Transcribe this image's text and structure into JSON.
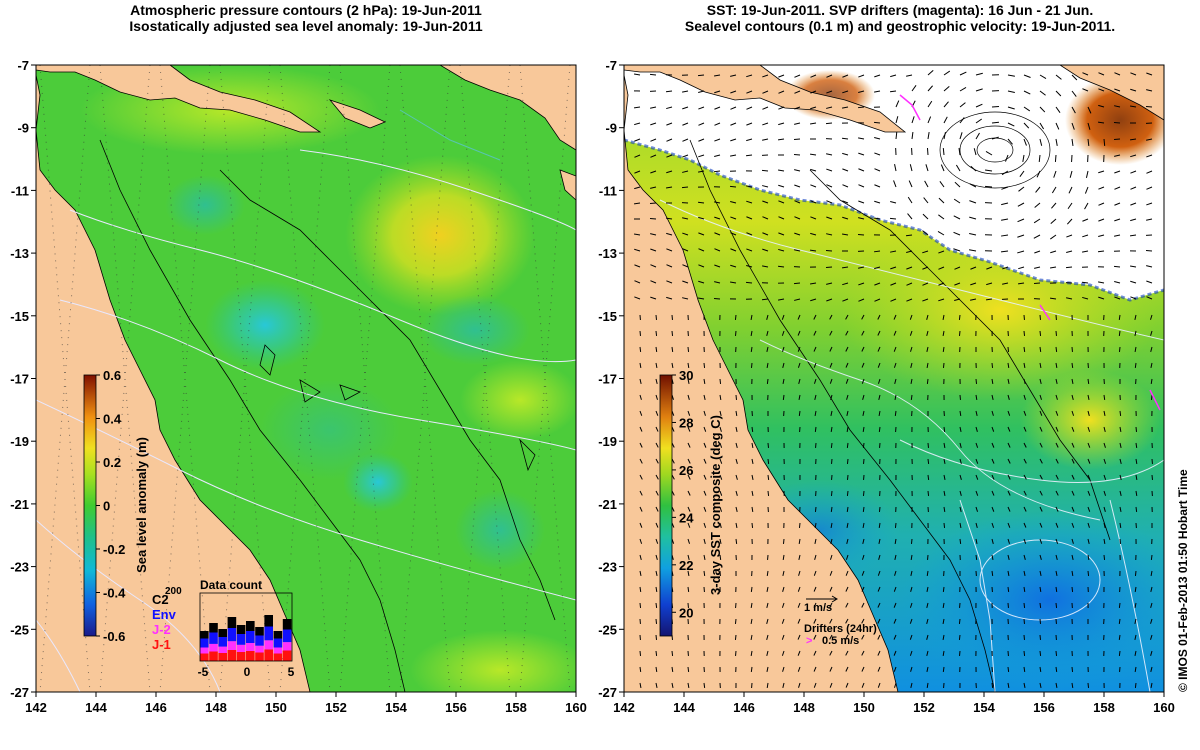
{
  "left_panel": {
    "title_line1": "Atmospheric pressure contours (2 hPa): 19-Jun-2011",
    "title_line2": "Isostatically adjusted sea level anomaly: 19-Jun-2011",
    "colorbar_label": "Sea level anomaly (m)",
    "colorbar_ticks": [
      "0.6",
      "0.4",
      "0.2",
      "0",
      "-0.2",
      "-0.4",
      "-0.6"
    ],
    "colorbar_range": [
      -0.6,
      0.6
    ],
    "inset": {
      "title": "Data count",
      "top_tick": "200",
      "x_ticks": [
        "-5",
        "0",
        "5"
      ],
      "legend": [
        {
          "label": "C2",
          "color": "#000000"
        },
        {
          "label": "Env",
          "color": "#1010ff"
        },
        {
          "label": "J-2",
          "color": "#ff30ff"
        },
        {
          "label": "J-1",
          "color": "#ff1010"
        }
      ]
    }
  },
  "right_panel": {
    "title_line1": "SST: 19-Jun-2011. SVP drifters (magenta): 16 Jun - 21 Jun.",
    "title_line2": "Sealevel contours (0.1 m) and geostrophic velocity: 19-Jun-2011.",
    "colorbar_label": "3-day SST composite (deg C)",
    "colorbar_ticks": [
      "30",
      "28",
      "26",
      "24",
      "22",
      "20"
    ],
    "colorbar_range": [
      19,
      30
    ],
    "velocity_key": "1 m/s",
    "drifter_label": "Drifters (24hr)",
    "drifter_speed": "0.5 m/s"
  },
  "axes": {
    "x_ticks": [
      "142",
      "144",
      "146",
      "148",
      "150",
      "152",
      "154",
      "156",
      "158",
      "160"
    ],
    "y_ticks": [
      "-7",
      "-9",
      "-11",
      "-13",
      "-15",
      "-17",
      "-19",
      "-21",
      "-23",
      "-25",
      "-27"
    ],
    "lon_range": [
      142,
      160
    ],
    "lat_range": [
      -27,
      -7
    ]
  },
  "credit": "© IMOS 01-Feb-2013 01:50 Hobart Time",
  "colors": {
    "land": "#f8c89a",
    "ocean_green": "#4ccc3a",
    "sst_missing": "#ffffff"
  }
}
